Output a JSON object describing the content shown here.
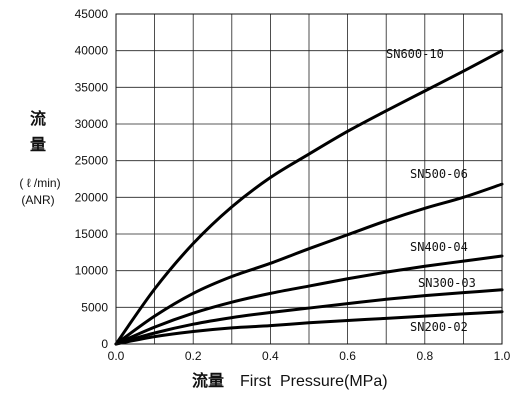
{
  "chart_data": {
    "type": "line",
    "xlabel_cjk": "流量",
    "xlabel": "First  Pressure(MPa)",
    "ylabel_cjk_1": "流",
    "ylabel_cjk_2": "量",
    "ylabel_unit": "( ℓ /min)",
    "ylabel_unit2": "(ANR)",
    "xlim": [
      0,
      1.0
    ],
    "ylim": [
      0,
      45000
    ],
    "x_ticks": [
      0,
      0.1,
      0.2,
      0.3,
      0.4,
      0.5,
      0.6,
      0.7,
      0.8,
      0.9,
      1.0
    ],
    "x_tick_labels": [
      "0.0",
      "",
      "0.2",
      "",
      "0.4",
      "",
      "0.6",
      "",
      "0.8",
      "",
      "1.0"
    ],
    "y_ticks": [
      0,
      5000,
      10000,
      15000,
      20000,
      25000,
      30000,
      35000,
      40000,
      45000
    ],
    "y_tick_labels": [
      "0",
      "5000",
      "10000",
      "15000",
      "20000",
      "25000",
      "30000",
      "35000",
      "40000",
      "45000"
    ],
    "grid": true,
    "series": [
      {
        "name": "SN600-10",
        "color": "#000000",
        "x": [
          0,
          0.1,
          0.2,
          0.3,
          0.4,
          0.5,
          0.6,
          0.7,
          0.8,
          0.9,
          1.0
        ],
        "y": [
          0,
          7500,
          13700,
          18700,
          22700,
          25900,
          29000,
          31800,
          34500,
          37200,
          40000
        ]
      },
      {
        "name": "SN500-06",
        "color": "#000000",
        "x": [
          0,
          0.1,
          0.2,
          0.3,
          0.4,
          0.5,
          0.6,
          0.7,
          0.8,
          0.9,
          1.0
        ],
        "y": [
          0,
          3800,
          6900,
          9200,
          11000,
          13000,
          14900,
          16800,
          18500,
          20000,
          21800
        ]
      },
      {
        "name": "SN400-04",
        "color": "#000000",
        "x": [
          0,
          0.1,
          0.2,
          0.3,
          0.4,
          0.5,
          0.6,
          0.7,
          0.8,
          0.9,
          1.0
        ],
        "y": [
          0,
          2300,
          4200,
          5700,
          6900,
          7900,
          8900,
          9800,
          10600,
          11300,
          12000
        ]
      },
      {
        "name": "SN300-03",
        "color": "#000000",
        "x": [
          0,
          0.1,
          0.2,
          0.3,
          0.4,
          0.5,
          0.6,
          0.7,
          0.8,
          0.9,
          1.0
        ],
        "y": [
          0,
          1500,
          2700,
          3600,
          4300,
          4900,
          5500,
          6100,
          6600,
          7000,
          7400
        ]
      },
      {
        "name": "SN200-02",
        "color": "#000000",
        "x": [
          0,
          0.1,
          0.2,
          0.3,
          0.4,
          0.5,
          0.6,
          0.7,
          0.8,
          0.9,
          1.0
        ],
        "y": [
          0,
          1000,
          1700,
          2200,
          2500,
          2900,
          3200,
          3500,
          3800,
          4100,
          4400
        ]
      }
    ]
  }
}
